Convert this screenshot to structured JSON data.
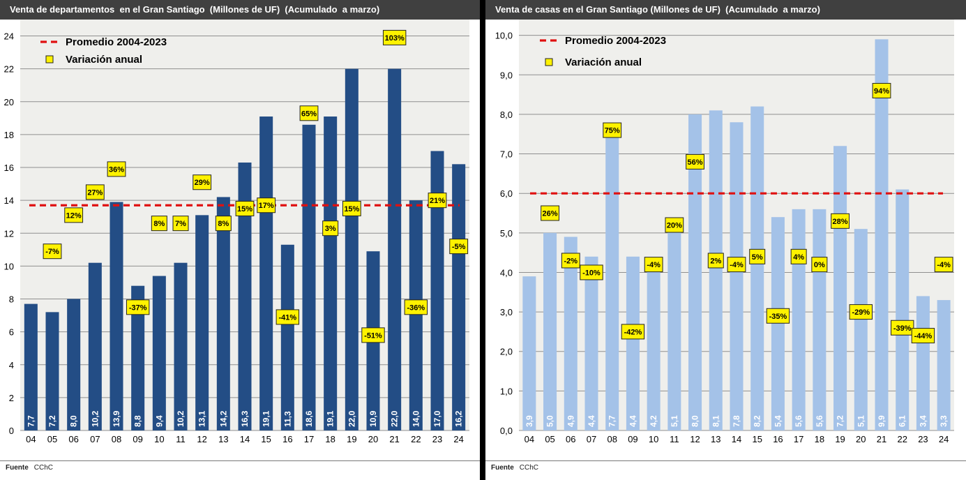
{
  "chart_data": [
    {
      "type": "bar",
      "title": "Venta de departamentos  en el Gran Santiago  (Millones de UF)  (Acumulado  a marzo)",
      "categories": [
        "04",
        "05",
        "06",
        "07",
        "08",
        "09",
        "10",
        "11",
        "12",
        "13",
        "14",
        "15",
        "16",
        "17",
        "18",
        "19",
        "20",
        "21",
        "22",
        "23",
        "24"
      ],
      "values": [
        7.7,
        7.2,
        8.0,
        10.2,
        13.9,
        8.8,
        9.4,
        10.2,
        13.1,
        14.2,
        16.3,
        19.1,
        11.3,
        18.6,
        19.1,
        22.0,
        10.9,
        22.0,
        14.0,
        17.0,
        16.2
      ],
      "value_labels": [
        "7,7",
        "7,2",
        "8,0",
        "10,2",
        "13,9",
        "8,8",
        "9,4",
        "10,2",
        "13,1",
        "14,2",
        "16,3",
        "19,1",
        "11,3",
        "18,6",
        "19,1",
        "22,0",
        "10,9",
        "22,0",
        "14,0",
        "17,0",
        "16,2"
      ],
      "variation_labels": [
        null,
        "-7%",
        "12%",
        "27%",
        "36%",
        "-37%",
        "8%",
        "7%",
        "29%",
        "8%",
        "15%",
        "17%",
        "-41%",
        "65%",
        "3%",
        "15%",
        "-51%",
        "103%",
        "-36%",
        "21%",
        "-5%"
      ],
      "variation_y": [
        null,
        10.9,
        13.1,
        14.5,
        15.9,
        7.5,
        12.6,
        12.6,
        15.1,
        12.6,
        13.5,
        13.7,
        6.9,
        19.3,
        12.3,
        13.5,
        5.8,
        23.9,
        7.5,
        14.0,
        11.2
      ],
      "average": 13.7,
      "average_label": "Promedio 2004-2023",
      "variation_legend": "Variación anual",
      "ylim": [
        0,
        25
      ],
      "yticks": [
        0,
        2,
        4,
        6,
        8,
        10,
        12,
        14,
        16,
        18,
        20,
        22,
        24
      ],
      "ytick_labels": [
        "0",
        "2",
        "4",
        "6",
        "8",
        "10",
        "12",
        "14",
        "16",
        "18",
        "20",
        "22",
        "24"
      ],
      "bar_color": "#234d85",
      "source_label": "Fuente",
      "source_value": "CChC"
    },
    {
      "type": "bar",
      "title": "Venta de casas en el Gran Santiago (Millones de UF)  (Acumulado  a marzo)",
      "categories": [
        "04",
        "05",
        "06",
        "07",
        "08",
        "09",
        "10",
        "11",
        "12",
        "13",
        "14",
        "15",
        "16",
        "17",
        "18",
        "19",
        "20",
        "21",
        "22",
        "23",
        "24"
      ],
      "values": [
        3.9,
        5.0,
        4.9,
        4.4,
        7.7,
        4.4,
        4.2,
        5.1,
        8.0,
        8.1,
        7.8,
        8.2,
        5.4,
        5.6,
        5.6,
        7.2,
        5.1,
        9.9,
        6.1,
        3.4,
        3.3
      ],
      "value_labels": [
        "3,9",
        "5,0",
        "4,9",
        "4,4",
        "7,7",
        "4,4",
        "4,2",
        "5,1",
        "8,0",
        "8,1",
        "7,8",
        "8,2",
        "5,4",
        "5,6",
        "5,6",
        "7,2",
        "5,1",
        "9,9",
        "6,1",
        "3,4",
        "3,3"
      ],
      "variation_labels": [
        null,
        "26%",
        "-2%",
        "-10%",
        "75%",
        "-42%",
        "-4%",
        "20%",
        "56%",
        "2%",
        "-4%",
        "5%",
        "-35%",
        "4%",
        "0%",
        "28%",
        "-29%",
        "94%",
        "-39%",
        "-44%",
        "-4%"
      ],
      "variation_y": [
        null,
        5.5,
        4.3,
        4.0,
        7.6,
        2.5,
        4.2,
        5.2,
        6.8,
        4.3,
        4.2,
        4.4,
        2.9,
        4.4,
        4.2,
        5.3,
        3.0,
        8.6,
        2.6,
        2.4,
        4.2
      ],
      "average": 6.0,
      "average_label": "Promedio 2004-2023",
      "variation_legend": "Variación anual",
      "ylim": [
        0,
        10.4
      ],
      "yticks": [
        0,
        1,
        2,
        3,
        4,
        5,
        6,
        7,
        8,
        9,
        10
      ],
      "ytick_labels": [
        "0,0",
        "1,0",
        "2,0",
        "3,0",
        "4,0",
        "5,0",
        "6,0",
        "7,0",
        "8,0",
        "9,0",
        "10,0"
      ],
      "bar_color": "#a4c2e8",
      "source_label": "Fuente",
      "source_value": "CChC"
    }
  ]
}
